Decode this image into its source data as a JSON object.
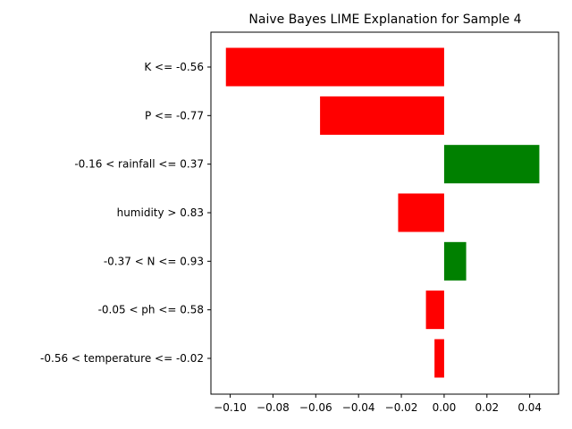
{
  "chart_data": {
    "type": "bar",
    "orientation": "horizontal",
    "title": "Naive Bayes LIME Explanation for Sample 4",
    "xlabel": "",
    "ylabel": "",
    "xlim": [
      -0.109,
      0.0535
    ],
    "xticks": [
      -0.1,
      -0.08,
      -0.06,
      -0.04,
      -0.02,
      0.0,
      0.02,
      0.04
    ],
    "xtick_labels": [
      "−0.10",
      "−0.08",
      "−0.06",
      "−0.04",
      "−0.02",
      "0.00",
      "0.02",
      "0.04"
    ],
    "grid": false,
    "categories": [
      "K <= -0.56",
      "P <= -0.77",
      "-0.16 < rainfall <= 0.37",
      "humidity > 0.83",
      "-0.37 < N <= 0.93",
      "-0.05 < ph <= 0.58",
      "-0.56 < temperature <= -0.02"
    ],
    "values": [
      -0.102,
      -0.058,
      0.0445,
      -0.0215,
      0.0103,
      -0.0085,
      -0.0045
    ],
    "colors": {
      "positive": "#008000",
      "negative": "#ff0000"
    }
  }
}
